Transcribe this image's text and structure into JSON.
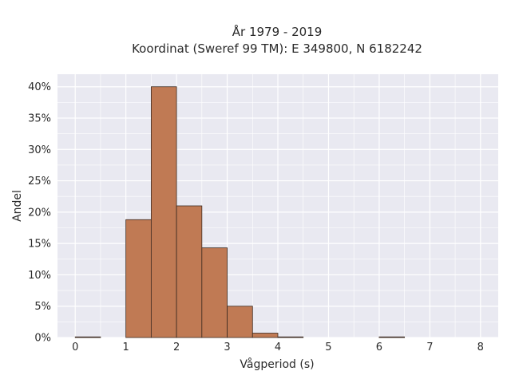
{
  "chart_data": {
    "type": "bar",
    "title_lines": [
      "År 1979 - 2019",
      "Koordinat (Sweref 99 TM): E 349800, N 6182242"
    ],
    "xlabel": "Vågperiod (s)",
    "ylabel": "Andel",
    "xlim": [
      -0.35,
      8.35
    ],
    "ylim": [
      0,
      0.42
    ],
    "xticks": [
      0,
      1,
      2,
      3,
      4,
      5,
      6,
      7,
      8
    ],
    "yticks": [
      0,
      0.05,
      0.1,
      0.15,
      0.2,
      0.25,
      0.3,
      0.35,
      0.4
    ],
    "ytick_labels": [
      "0%",
      "5%",
      "10%",
      "15%",
      "20%",
      "25%",
      "30%",
      "35%",
      "40%"
    ],
    "bin_width": 0.5,
    "bins": [
      {
        "start": 0.0,
        "value": 0.001
      },
      {
        "start": 0.5,
        "value": 0.0
      },
      {
        "start": 1.0,
        "value": 0.188
      },
      {
        "start": 1.5,
        "value": 0.4
      },
      {
        "start": 2.0,
        "value": 0.21
      },
      {
        "start": 2.5,
        "value": 0.143
      },
      {
        "start": 3.0,
        "value": 0.05
      },
      {
        "start": 3.5,
        "value": 0.007
      },
      {
        "start": 4.0,
        "value": 0.001
      },
      {
        "start": 4.5,
        "value": 0.0
      },
      {
        "start": 5.0,
        "value": 0.0
      },
      {
        "start": 5.5,
        "value": 0.0
      },
      {
        "start": 6.0,
        "value": 0.001
      },
      {
        "start": 6.5,
        "value": 0.0
      },
      {
        "start": 7.0,
        "value": 0.0
      },
      {
        "start": 7.5,
        "value": 0.0
      }
    ],
    "grid": true,
    "colors": {
      "bar_fill": "#c07a54",
      "bar_edge": "#3b2a20",
      "plot_bg": "#e9e9f1",
      "grid": "#ffffff"
    }
  }
}
